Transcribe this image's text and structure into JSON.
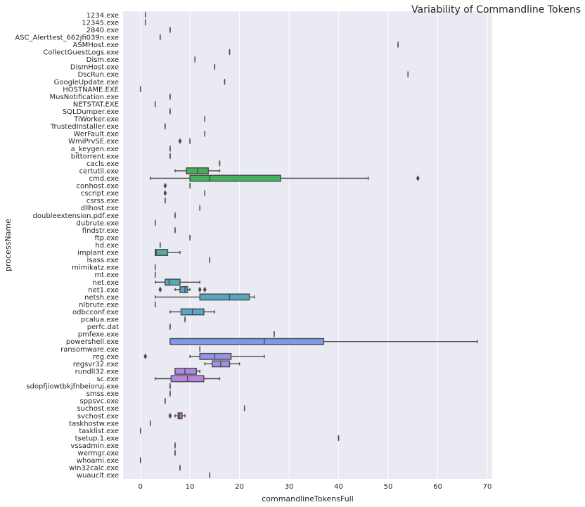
{
  "chart_data": {
    "type": "box",
    "orientation": "horizontal",
    "title": "Variability of Commandline Tokens",
    "xlabel": "commandlineTokensFull",
    "ylabel": "processName",
    "xlim": [
      -3.5,
      71
    ],
    "xticks": [
      0,
      10,
      20,
      30,
      40,
      50,
      60,
      70
    ],
    "grid": true,
    "categories": [
      "1234.exe",
      "12345.exe",
      "2840.exe",
      "ASC_Alerttest_662jfi039n.exe",
      "ASMHost.exe",
      "CollectGuestLogs.exe",
      "Dism.exe",
      "DismHost.exe",
      "DscRun.exe",
      "GoogleUpdate.exe",
      "HOSTNAME.EXE",
      "MusNotification.exe",
      "NETSTAT.EXE",
      "SQLDumper.exe",
      "TiWorker.exe",
      "TrustedInstaller.exe",
      "WerFault.exe",
      "WmiPrvSE.exe",
      "a_keygen.exe",
      "bittorrent.exe",
      "cacls.exe",
      "certutil.exe",
      "cmd.exe",
      "conhost.exe",
      "cscript.exe",
      "csrss.exe",
      "dllhost.exe",
      "doubleextension.pdf.exe",
      "dubrute.exe",
      "findstr.exe",
      "ftp.exe",
      "hd.exe",
      "implant.exe",
      "lsass.exe",
      "mimikatz.exe",
      "mt.exe",
      "net.exe",
      "net1.exe",
      "netsh.exe",
      "nlbrute.exe",
      "odbcconf.exe",
      "pcalua.exe",
      "perfc.dat",
      "pmfexe.exe",
      "powershell.exe",
      "ransomware.exe",
      "reg.exe",
      "regsvr32.exe",
      "rundll32.exe",
      "sc.exe",
      "sdopfjiowtbkjfnbeioruj.exe",
      "smss.exe",
      "sppsvc.exe",
      "suchost.exe",
      "svchost.exe",
      "taskhostw.exe",
      "tasklist.exe",
      "tsetup.1.exe",
      "vssadmin.exe",
      "wermgr.exe",
      "whoami.exe",
      "win32calc.exe",
      "wuauclt.exe"
    ],
    "boxes": [
      {
        "name": "1234.exe",
        "q1": 1,
        "median": 1,
        "q3": 1,
        "whisker_low": 1,
        "whisker_high": 1,
        "outliers": [],
        "color": "#e8546a"
      },
      {
        "name": "12345.exe",
        "q1": 1,
        "median": 1,
        "q3": 1,
        "whisker_low": 1,
        "whisker_high": 1,
        "outliers": [],
        "color": "#e85a55"
      },
      {
        "name": "2840.exe",
        "q1": 6,
        "median": 6,
        "q3": 6,
        "whisker_low": 6,
        "whisker_high": 6,
        "outliers": [],
        "color": "#e86148"
      },
      {
        "name": "ASC_Alerttest_662jfi039n.exe",
        "q1": 4,
        "median": 4,
        "q3": 4,
        "whisker_low": 4,
        "whisker_high": 4,
        "outliers": [],
        "color": "#e0683c"
      },
      {
        "name": "ASMHost.exe",
        "q1": 52,
        "median": 52,
        "q3": 52,
        "whisker_low": 52,
        "whisker_high": 52,
        "outliers": [],
        "color": "#d8703a"
      },
      {
        "name": "CollectGuestLogs.exe",
        "q1": 18,
        "median": 18,
        "q3": 18,
        "whisker_low": 18,
        "whisker_high": 18,
        "outliers": [],
        "color": "#d07838"
      },
      {
        "name": "Dism.exe",
        "q1": 11,
        "median": 11,
        "q3": 11,
        "whisker_low": 11,
        "whisker_high": 11,
        "outliers": [],
        "color": "#c88037"
      },
      {
        "name": "DismHost.exe",
        "q1": 15,
        "median": 15,
        "q3": 15,
        "whisker_low": 15,
        "whisker_high": 15,
        "outliers": [],
        "color": "#c08736"
      },
      {
        "name": "DscRun.exe",
        "q1": 54,
        "median": 54,
        "q3": 54,
        "whisker_low": 54,
        "whisker_high": 54,
        "outliers": [],
        "color": "#b88d36"
      },
      {
        "name": "GoogleUpdate.exe",
        "q1": 17,
        "median": 17,
        "q3": 17,
        "whisker_low": 17,
        "whisker_high": 17,
        "outliers": [],
        "color": "#b09236"
      },
      {
        "name": "HOSTNAME.EXE",
        "q1": 0,
        "median": 0,
        "q3": 0,
        "whisker_low": 0,
        "whisker_high": 0,
        "outliers": [],
        "color": "#a89636"
      },
      {
        "name": "MusNotification.exe",
        "q1": 6,
        "median": 6,
        "q3": 6,
        "whisker_low": 6,
        "whisker_high": 6,
        "outliers": [],
        "color": "#a09a36"
      },
      {
        "name": "NETSTAT.EXE",
        "q1": 3,
        "median": 3,
        "q3": 3,
        "whisker_low": 3,
        "whisker_high": 3,
        "outliers": [],
        "color": "#979e36"
      },
      {
        "name": "SQLDumper.exe",
        "q1": 6,
        "median": 6,
        "q3": 6,
        "whisker_low": 6,
        "whisker_high": 6,
        "outliers": [],
        "color": "#8ea136"
      },
      {
        "name": "TiWorker.exe",
        "q1": 13,
        "median": 13,
        "q3": 13,
        "whisker_low": 13,
        "whisker_high": 13,
        "outliers": [],
        "color": "#84a436"
      },
      {
        "name": "TrustedInstaller.exe",
        "q1": 5,
        "median": 5,
        "q3": 5,
        "whisker_low": 5,
        "whisker_high": 5,
        "outliers": [],
        "color": "#7aa737"
      },
      {
        "name": "WerFault.exe",
        "q1": 13,
        "median": 13,
        "q3": 13,
        "whisker_low": 13,
        "whisker_high": 13,
        "outliers": [],
        "color": "#6faa38"
      },
      {
        "name": "WmiPrvSE.exe",
        "q1": 10,
        "median": 10,
        "q3": 10,
        "whisker_low": 10,
        "whisker_high": 10,
        "outliers": [
          8
        ],
        "color": "#62ad3a"
      },
      {
        "name": "a_keygen.exe",
        "q1": 6,
        "median": 6,
        "q3": 6,
        "whisker_low": 6,
        "whisker_high": 6,
        "outliers": [],
        "color": "#55b03e"
      },
      {
        "name": "bittorrent.exe",
        "q1": 6,
        "median": 6,
        "q3": 6,
        "whisker_low": 6,
        "whisker_high": 6,
        "outliers": [],
        "color": "#48b245"
      },
      {
        "name": "cacls.exe",
        "q1": 16,
        "median": 16,
        "q3": 16,
        "whisker_low": 16,
        "whisker_high": 16,
        "outliers": [],
        "color": "#43b14e"
      },
      {
        "name": "certutil.exe",
        "q1": 9.3,
        "median": 11.5,
        "q3": 13.7,
        "whisker_low": 7,
        "whisker_high": 16,
        "outliers": [],
        "color": "#44b157"
      },
      {
        "name": "cmd.exe",
        "q1": 10,
        "median": 14,
        "q3": 28.3,
        "whisker_low": 2,
        "whisker_high": 46,
        "outliers": [
          56
        ],
        "color": "#45b160"
      },
      {
        "name": "conhost.exe",
        "q1": 10,
        "median": 10,
        "q3": 10,
        "whisker_low": 10,
        "whisker_high": 10,
        "outliers": [
          5
        ],
        "color": "#46b067"
      },
      {
        "name": "cscript.exe",
        "q1": 13,
        "median": 13,
        "q3": 13,
        "whisker_low": 13,
        "whisker_high": 13,
        "outliers": [
          5
        ],
        "color": "#47b06e"
      },
      {
        "name": "csrss.exe",
        "q1": 5,
        "median": 5,
        "q3": 5,
        "whisker_low": 5,
        "whisker_high": 5,
        "outliers": [],
        "color": "#48af75"
      },
      {
        "name": "dllhost.exe",
        "q1": 12,
        "median": 12,
        "q3": 12,
        "whisker_low": 12,
        "whisker_high": 12,
        "outliers": [],
        "color": "#49af7c"
      },
      {
        "name": "doubleextension.pdf.exe",
        "q1": 7,
        "median": 7,
        "q3": 7,
        "whisker_low": 7,
        "whisker_high": 7,
        "outliers": [],
        "color": "#4aae83"
      },
      {
        "name": "dubrute.exe",
        "q1": 3,
        "median": 3,
        "q3": 3,
        "whisker_low": 3,
        "whisker_high": 3,
        "outliers": [],
        "color": "#4bae8a"
      },
      {
        "name": "findstr.exe",
        "q1": 7,
        "median": 7,
        "q3": 7,
        "whisker_low": 7,
        "whisker_high": 7,
        "outliers": [],
        "color": "#4cad91"
      },
      {
        "name": "ftp.exe",
        "q1": 10,
        "median": 10,
        "q3": 10,
        "whisker_low": 10,
        "whisker_high": 10,
        "outliers": [],
        "color": "#4dad98"
      },
      {
        "name": "hd.exe",
        "q1": 4,
        "median": 4,
        "q3": 4,
        "whisker_low": 4,
        "whisker_high": 4,
        "outliers": [],
        "color": "#4eac9e"
      },
      {
        "name": "implant.exe",
        "q1": 3,
        "median": 3.2,
        "q3": 5.5,
        "whisker_low": 3,
        "whisker_high": 8,
        "outliers": [],
        "color": "#4fabA3"
      },
      {
        "name": "lsass.exe",
        "q1": 14,
        "median": 14,
        "q3": 14,
        "whisker_low": 14,
        "whisker_high": 14,
        "outliers": [],
        "color": "#50aba9"
      },
      {
        "name": "mimikatz.exe",
        "q1": 3,
        "median": 3,
        "q3": 3,
        "whisker_low": 3,
        "whisker_high": 3,
        "outliers": [],
        "color": "#51aaae"
      },
      {
        "name": "mt.exe",
        "q1": 3,
        "median": 3,
        "q3": 3,
        "whisker_low": 3,
        "whisker_high": 3,
        "outliers": [],
        "color": "#52aab3"
      },
      {
        "name": "net.exe",
        "q1": 5,
        "median": 5.8,
        "q3": 8,
        "whisker_low": 3,
        "whisker_high": 12,
        "outliers": [],
        "color": "#53a9b8"
      },
      {
        "name": "net1.exe",
        "q1": 8,
        "median": 9,
        "q3": 9.5,
        "whisker_low": 7,
        "whisker_high": 10,
        "outliers": [
          4,
          12,
          13
        ],
        "color": "#54a8bd"
      },
      {
        "name": "netsh.exe",
        "q1": 12,
        "median": 18,
        "q3": 22,
        "whisker_low": 3,
        "whisker_high": 23,
        "outliers": [],
        "color": "#56a7c3"
      },
      {
        "name": "nlbrute.exe",
        "q1": 3,
        "median": 3,
        "q3": 3,
        "whisker_low": 3,
        "whisker_high": 3,
        "outliers": [],
        "color": "#58a6c9"
      },
      {
        "name": "odbcconf.exe",
        "q1": 8.2,
        "median": 10.5,
        "q3": 12.8,
        "whisker_low": 6,
        "whisker_high": 15,
        "outliers": [],
        "color": "#5aa5d0"
      },
      {
        "name": "pcalua.exe",
        "q1": 9,
        "median": 9,
        "q3": 9,
        "whisker_low": 9,
        "whisker_high": 9,
        "outliers": [],
        "color": "#5da3d8"
      },
      {
        "name": "perfc.dat",
        "q1": 6,
        "median": 6,
        "q3": 6,
        "whisker_low": 6,
        "whisker_high": 6,
        "outliers": [],
        "color": "#62a1e0"
      },
      {
        "name": "pmfexe.exe",
        "q1": 27,
        "median": 27,
        "q3": 27,
        "whisker_low": 27,
        "whisker_high": 27,
        "outliers": [],
        "color": "#6a9ee8"
      },
      {
        "name": "powershell.exe",
        "q1": 6,
        "median": 25,
        "q3": 37,
        "whisker_low": 6,
        "whisker_high": 68,
        "outliers": [],
        "color": "#7b9ae8"
      },
      {
        "name": "ransomware.exe",
        "q1": 12,
        "median": 12,
        "q3": 12,
        "whisker_low": 12,
        "whisker_high": 12,
        "outliers": [],
        "color": "#8896e8"
      },
      {
        "name": "reg.exe",
        "q1": 12,
        "median": 15,
        "q3": 18.3,
        "whisker_low": 10,
        "whisker_high": 25,
        "outliers": [
          1
        ],
        "color": "#9692e8"
      },
      {
        "name": "regsvr32.exe",
        "q1": 14.5,
        "median": 16.2,
        "q3": 18,
        "whisker_low": 13,
        "whisker_high": 20,
        "outliers": [],
        "color": "#a28ee8"
      },
      {
        "name": "rundll32.exe",
        "q1": 7,
        "median": 9,
        "q3": 11.3,
        "whisker_low": 7,
        "whisker_high": 12,
        "outliers": [],
        "color": "#ae8ae6"
      },
      {
        "name": "sc.exe",
        "q1": 6.2,
        "median": 9.5,
        "q3": 12.8,
        "whisker_low": 3,
        "whisker_high": 16,
        "outliers": [],
        "color": "#b985e4"
      },
      {
        "name": "sdopfjiowtbkjfnbeioruj.exe",
        "q1": 6,
        "median": 6,
        "q3": 6,
        "whisker_low": 6,
        "whisker_high": 6,
        "outliers": [],
        "color": "#c380e0"
      },
      {
        "name": "smss.exe",
        "q1": 6,
        "median": 6,
        "q3": 6,
        "whisker_low": 6,
        "whisker_high": 6,
        "outliers": [],
        "color": "#cc7bdc"
      },
      {
        "name": "sppsvc.exe",
        "q1": 5,
        "median": 5,
        "q3": 5,
        "whisker_low": 5,
        "whisker_high": 5,
        "outliers": [],
        "color": "#d476d6"
      },
      {
        "name": "suchost.exe",
        "q1": 21,
        "median": 21,
        "q3": 21,
        "whisker_low": 21,
        "whisker_high": 21,
        "outliers": [],
        "color": "#db71cf"
      },
      {
        "name": "svchost.exe",
        "q1": 7.6,
        "median": 7.9,
        "q3": 8.4,
        "whisker_low": 7,
        "whisker_high": 9,
        "outliers": [
          6
        ],
        "color": "#e06cc6"
      },
      {
        "name": "taskhostw.exe",
        "q1": 2,
        "median": 2,
        "q3": 2,
        "whisker_low": 2,
        "whisker_high": 2,
        "outliers": [],
        "color": "#e467bc"
      },
      {
        "name": "tasklist.exe",
        "q1": 0,
        "median": 0,
        "q3": 0,
        "whisker_low": 0,
        "whisker_high": 0,
        "outliers": [],
        "color": "#e763b2"
      },
      {
        "name": "tsetup.1.exe",
        "q1": 40,
        "median": 40,
        "q3": 40,
        "whisker_low": 40,
        "whisker_high": 40,
        "outliers": [],
        "color": "#e960a6"
      },
      {
        "name": "vssadmin.exe",
        "q1": 7,
        "median": 7,
        "q3": 7,
        "whisker_low": 7,
        "whisker_high": 7,
        "outliers": [],
        "color": "#ea5d9a"
      },
      {
        "name": "wermgr.exe",
        "q1": 7,
        "median": 7,
        "q3": 7,
        "whisker_low": 7,
        "whisker_high": 7,
        "outliers": [],
        "color": "#ea5b8e"
      },
      {
        "name": "whoami.exe",
        "q1": 0,
        "median": 0,
        "q3": 0,
        "whisker_low": 0,
        "whisker_high": 0,
        "outliers": [],
        "color": "#ea5981"
      },
      {
        "name": "win32calc.exe",
        "q1": 8,
        "median": 8,
        "q3": 8,
        "whisker_low": 8,
        "whisker_high": 8,
        "outliers": [],
        "color": "#e95775"
      },
      {
        "name": "wuauclt.exe",
        "q1": 14,
        "median": 14,
        "q3": 14,
        "whisker_low": 14,
        "whisker_high": 14,
        "outliers": [],
        "color": "#e8556b"
      }
    ]
  },
  "style": {
    "plot_background": "#eaeaf2",
    "grid_color": "#ffffff",
    "line_color": "#4a4a4a",
    "text_color": "#262626"
  }
}
